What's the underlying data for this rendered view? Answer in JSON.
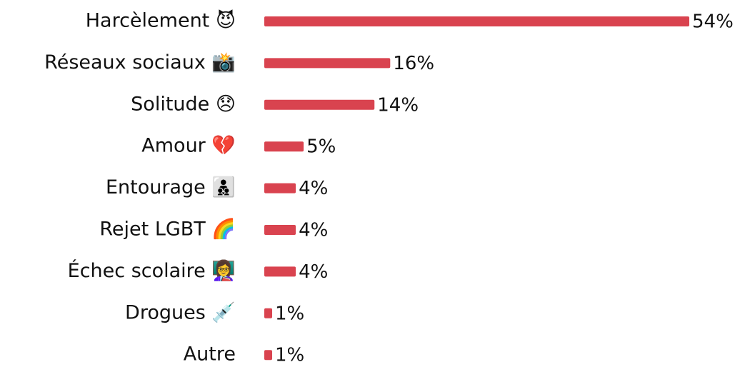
{
  "chart_data": {
    "type": "bar",
    "orientation": "horizontal",
    "categories": [
      "Harcèlement 😈",
      "Réseaux sociaux 📸",
      "Solitude 😞",
      "Amour 💔",
      "Entourage 👨‍👦‍👦",
      "Rejet LGBT 🌈",
      "Échec scolaire 👩‍🏫",
      "Drogues 💉",
      "Autre"
    ],
    "values": [
      54,
      16,
      14,
      5,
      4,
      4,
      4,
      1,
      1
    ],
    "value_labels": [
      "54%",
      "16%",
      "14%",
      "5%",
      "4%",
      "4%",
      "4%",
      "1%",
      "1%"
    ],
    "color": "#d9434f"
  }
}
